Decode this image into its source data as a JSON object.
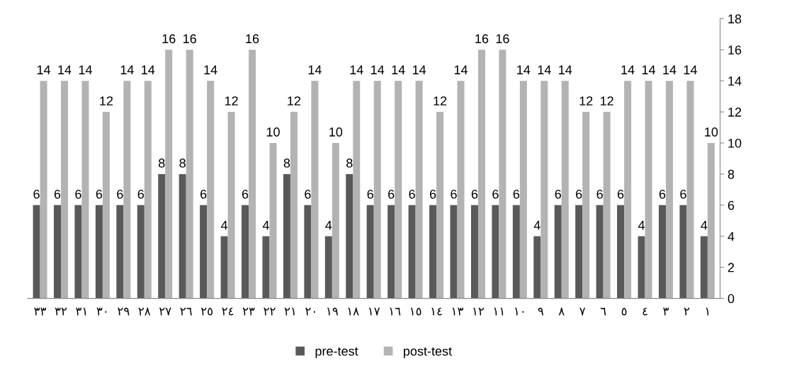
{
  "chart_data": {
    "type": "bar",
    "categories": [
      "٣٣",
      "٣٢",
      "٣١",
      "٣٠",
      "٢٩",
      "٢٨",
      "٢٧",
      "٢٦",
      "٢٥",
      "٢٤",
      "٢٣",
      "٢٢",
      "٢١",
      "٢٠",
      "١٩",
      "١٨",
      "١٧",
      "١٦",
      "١٥",
      "١٤",
      "١٣",
      "١٢",
      "١١",
      "١٠",
      "٩",
      "٨",
      "٧",
      "٦",
      "٥",
      "٤",
      "٣",
      "٢",
      "١"
    ],
    "series": [
      {
        "name": "pre-test",
        "color": "#595959",
        "values": [
          6,
          6,
          6,
          6,
          6,
          6,
          8,
          8,
          6,
          4,
          6,
          4,
          8,
          6,
          4,
          8,
          6,
          6,
          6,
          6,
          6,
          6,
          6,
          6,
          4,
          6,
          6,
          6,
          6,
          4,
          6,
          6,
          4
        ]
      },
      {
        "name": "post-test",
        "color": "#b3b3b3",
        "values": [
          14,
          14,
          14,
          12,
          14,
          14,
          16,
          16,
          14,
          12,
          16,
          10,
          12,
          14,
          10,
          14,
          14,
          14,
          14,
          12,
          14,
          16,
          16,
          14,
          14,
          14,
          12,
          12,
          14,
          14,
          14,
          14,
          10
        ]
      }
    ],
    "ylim": [
      0,
      18
    ],
    "yticks": [
      0,
      2,
      4,
      6,
      8,
      10,
      12,
      14,
      16,
      18
    ],
    "grid": false,
    "legend": "bottom",
    "data_labels": true
  }
}
